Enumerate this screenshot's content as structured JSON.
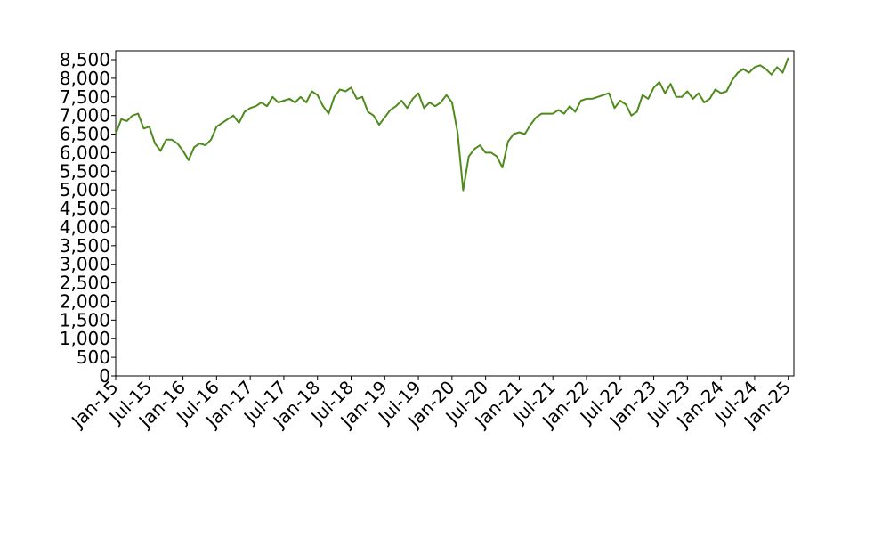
{
  "chart_data": {
    "type": "line",
    "color": "#4f8a1c",
    "x": [
      "2015-01",
      "2015-02",
      "2015-03",
      "2015-04",
      "2015-05",
      "2015-06",
      "2015-07",
      "2015-08",
      "2015-09",
      "2015-10",
      "2015-11",
      "2015-12",
      "2016-01",
      "2016-02",
      "2016-03",
      "2016-04",
      "2016-05",
      "2016-06",
      "2016-07",
      "2016-08",
      "2016-09",
      "2016-10",
      "2016-11",
      "2016-12",
      "2017-01",
      "2017-02",
      "2017-03",
      "2017-04",
      "2017-05",
      "2017-06",
      "2017-07",
      "2017-08",
      "2017-09",
      "2017-10",
      "2017-11",
      "2017-12",
      "2018-01",
      "2018-02",
      "2018-03",
      "2018-04",
      "2018-05",
      "2018-06",
      "2018-07",
      "2018-08",
      "2018-09",
      "2018-10",
      "2018-11",
      "2018-12",
      "2019-01",
      "2019-02",
      "2019-03",
      "2019-04",
      "2019-05",
      "2019-06",
      "2019-07",
      "2019-08",
      "2019-09",
      "2019-10",
      "2019-11",
      "2019-12",
      "2020-01",
      "2020-02",
      "2020-03",
      "2020-04",
      "2020-05",
      "2020-06",
      "2020-07",
      "2020-08",
      "2020-09",
      "2020-10",
      "2020-11",
      "2020-12",
      "2021-01",
      "2021-02",
      "2021-03",
      "2021-04",
      "2021-05",
      "2021-06",
      "2021-07",
      "2021-08",
      "2021-09",
      "2021-10",
      "2021-11",
      "2021-12",
      "2022-01",
      "2022-02",
      "2022-03",
      "2022-04",
      "2022-05",
      "2022-06",
      "2022-07",
      "2022-08",
      "2022-09",
      "2022-10",
      "2022-11",
      "2022-12",
      "2023-01",
      "2023-02",
      "2023-03",
      "2023-04",
      "2023-05",
      "2023-06",
      "2023-07",
      "2023-08",
      "2023-09",
      "2023-10",
      "2023-11",
      "2023-12",
      "2024-01",
      "2024-02",
      "2024-03",
      "2024-04",
      "2024-05",
      "2024-06",
      "2024-07",
      "2024-08",
      "2024-09",
      "2024-10",
      "2024-11",
      "2024-12",
      "2025-01"
    ],
    "values": [
      6500,
      6900,
      6850,
      7000,
      7050,
      6650,
      6700,
      6250,
      6050,
      6350,
      6350,
      6250,
      6050,
      5800,
      6150,
      6250,
      6200,
      6350,
      6700,
      6800,
      6900,
      7000,
      6800,
      7100,
      7200,
      7250,
      7350,
      7250,
      7500,
      7350,
      7400,
      7450,
      7350,
      7500,
      7350,
      7650,
      7550,
      7250,
      7050,
      7500,
      7700,
      7650,
      7750,
      7450,
      7500,
      7100,
      7000,
      6750,
      6950,
      7150,
      7250,
      7400,
      7200,
      7450,
      7600,
      7200,
      7350,
      7250,
      7350,
      7550,
      7350,
      6550,
      4990,
      5900,
      6100,
      6200,
      6000,
      6000,
      5900,
      5600,
      6300,
      6500,
      6550,
      6500,
      6750,
      6950,
      7050,
      7050,
      7050,
      7150,
      7050,
      7250,
      7100,
      7400,
      7450,
      7450,
      7500,
      7550,
      7600,
      7200,
      7400,
      7300,
      7000,
      7100,
      7550,
      7450,
      7750,
      7900,
      7600,
      7850,
      7500,
      7500,
      7650,
      7450,
      7600,
      7350,
      7450,
      7700,
      7600,
      7650,
      7950,
      8150,
      8250,
      8150,
      8300,
      8350,
      8250,
      8100,
      8300,
      8150,
      8550
    ],
    "xlim": [
      "2015-01",
      "2025-02"
    ],
    "xticks": [
      {
        "value": "2015-01",
        "label": "Jan-15"
      },
      {
        "value": "2015-07",
        "label": "Jul-15"
      },
      {
        "value": "2016-01",
        "label": "Jan-16"
      },
      {
        "value": "2016-07",
        "label": "Jul-16"
      },
      {
        "value": "2017-01",
        "label": "Jan-17"
      },
      {
        "value": "2017-07",
        "label": "Jul-17"
      },
      {
        "value": "2018-01",
        "label": "Jan-18"
      },
      {
        "value": "2018-07",
        "label": "Jul-18"
      },
      {
        "value": "2019-01",
        "label": "Jan-19"
      },
      {
        "value": "2019-07",
        "label": "Jul-19"
      },
      {
        "value": "2020-01",
        "label": "Jan-20"
      },
      {
        "value": "2020-07",
        "label": "Jul-20"
      },
      {
        "value": "2021-01",
        "label": "Jan-21"
      },
      {
        "value": "2021-07",
        "label": "Jul-21"
      },
      {
        "value": "2022-01",
        "label": "Jan-22"
      },
      {
        "value": "2022-07",
        "label": "Jul-22"
      },
      {
        "value": "2023-01",
        "label": "Jan-23"
      },
      {
        "value": "2023-07",
        "label": "Jul-23"
      },
      {
        "value": "2024-01",
        "label": "Jan-24"
      },
      {
        "value": "2024-07",
        "label": "Jul-24"
      },
      {
        "value": "2025-01",
        "label": "Jan-25"
      }
    ],
    "ylim": [
      0,
      8740
    ],
    "yticks": [
      0,
      500,
      {
        "value": 1000,
        "label": "1,000"
      },
      {
        "value": 1500,
        "label": "1,500"
      },
      {
        "value": 2000,
        "label": "2,000"
      },
      {
        "value": 2500,
        "label": "2,500"
      },
      {
        "value": 3000,
        "label": "3,000"
      },
      {
        "value": 3500,
        "label": "3,500"
      },
      {
        "value": 4000,
        "label": "4,000"
      },
      {
        "value": 4500,
        "label": "4,500"
      },
      {
        "value": 5000,
        "label": "5,000"
      },
      {
        "value": 5500,
        "label": "5,500"
      },
      {
        "value": 6000,
        "label": "6,000"
      },
      {
        "value": 6500,
        "label": "6,500"
      },
      {
        "value": 7000,
        "label": "7,000"
      },
      {
        "value": 7500,
        "label": "7,500"
      },
      {
        "value": 8000,
        "label": "8,000"
      },
      {
        "value": 8500,
        "label": "8,500"
      }
    ]
  }
}
